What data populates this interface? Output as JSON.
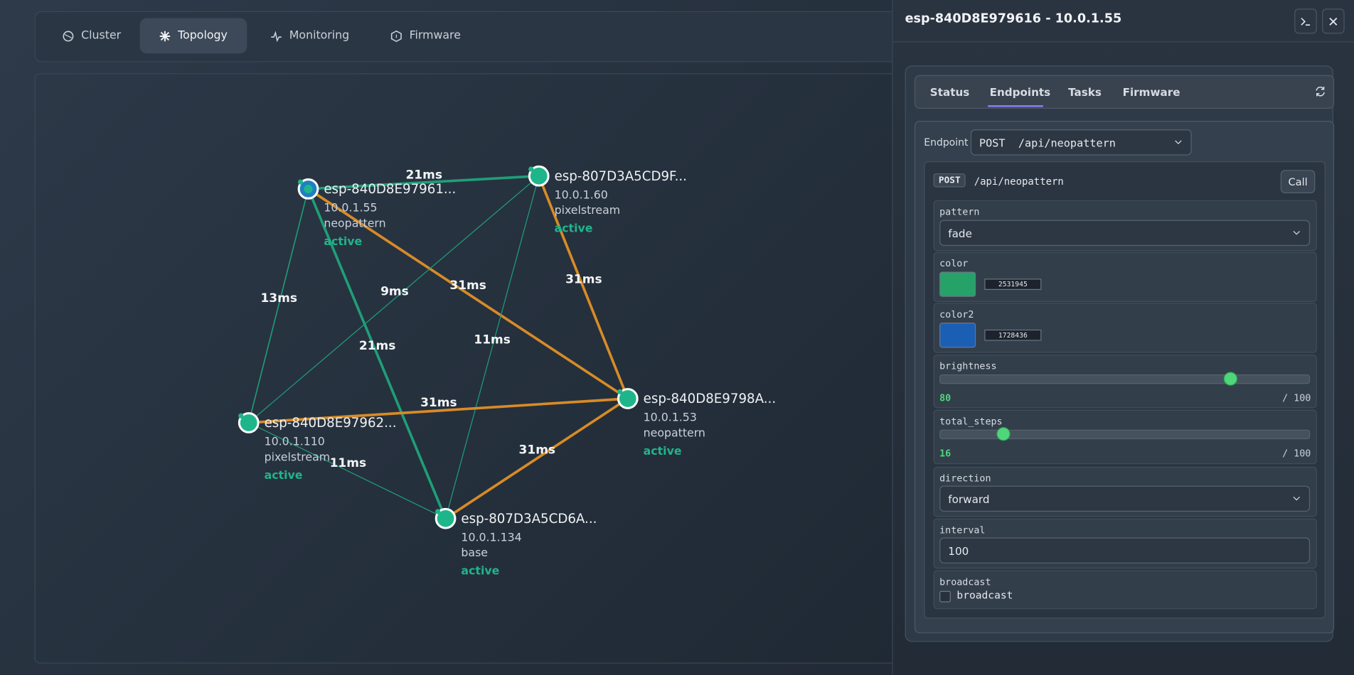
{
  "nav": {
    "tabs": [
      "Cluster",
      "Topology",
      "Monitoring",
      "Firmware"
    ]
  },
  "topology": {
    "nodes": [
      {
        "name": "esp-840D8E97961...",
        "ip": "10.0.1.55",
        "role": "neopattern",
        "status": "active"
      },
      {
        "name": "esp-807D3A5CD9F...",
        "ip": "10.0.1.60",
        "role": "pixelstream",
        "status": "active"
      },
      {
        "name": "esp-840D8E9798A...",
        "ip": "10.0.1.53",
        "role": "neopattern",
        "status": "active"
      },
      {
        "name": "esp-840D8E97962...",
        "ip": "10.0.1.110",
        "role": "pixelstream",
        "status": "active"
      },
      {
        "name": "esp-807D3A5CD6A...",
        "ip": "10.0.1.134",
        "role": "base",
        "status": "active"
      }
    ],
    "links": [
      "21ms",
      "13ms",
      "21ms",
      "31ms",
      "9ms",
      "11ms",
      "31ms",
      "31ms",
      "11ms",
      "31ms"
    ]
  },
  "panel": {
    "title": "esp-840D8E979616 - 10.0.1.55",
    "tabs": [
      "Status",
      "Endpoints",
      "Tasks",
      "Firmware"
    ],
    "endpoint_label": "Endpoint",
    "endpoint_select": "POST  /api/neopattern",
    "request": {
      "method": "POST",
      "path": "/api/neopattern",
      "button": "Call"
    },
    "fields": {
      "pattern": {
        "label": "pattern",
        "value": "fade"
      },
      "color": {
        "label": "color",
        "value": 2531945
      },
      "color2": {
        "label": "color2",
        "value": 1728436
      },
      "brightness": {
        "label": "brightness",
        "value": 80,
        "max": 100,
        "max_label": "/ 100"
      },
      "total_steps": {
        "label": "total_steps",
        "value": 16,
        "max": 100,
        "max_label": "/ 100"
      },
      "direction": {
        "label": "direction",
        "value": "forward"
      },
      "interval": {
        "label": "interval",
        "value": "100"
      },
      "broadcast": {
        "label": "broadcast",
        "checkbox_label": "broadcast"
      }
    }
  }
}
